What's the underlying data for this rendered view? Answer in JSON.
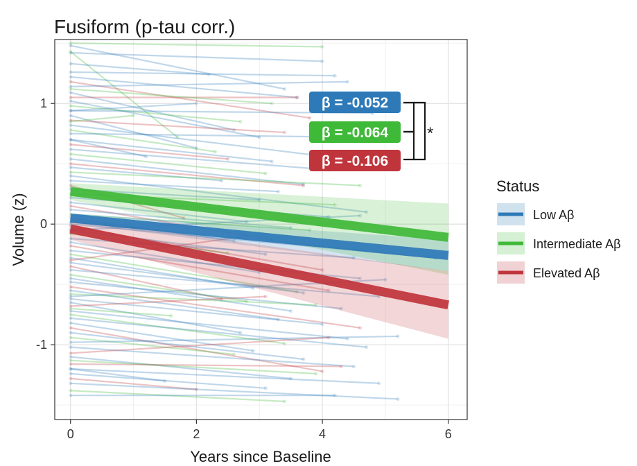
{
  "chart_data": {
    "type": "line",
    "title": "Fusiform (p-tau corr.)",
    "xlabel": "Years since Baseline",
    "ylabel": "Volume (z)",
    "xlim": [
      -0.25,
      6.3
    ],
    "ylim": [
      -1.62,
      1.53
    ],
    "xticks": [
      0,
      2,
      4,
      6
    ],
    "yticks": [
      -1,
      0,
      1
    ],
    "grid": true,
    "legend": {
      "title": "Status",
      "position": "right",
      "entries": [
        "Low Aβ",
        "Intermediate Aβ",
        "Elevated Aβ"
      ]
    },
    "colors": {
      "low": "#2e7ab8",
      "intermediate": "#3fb938",
      "elevated": "#c0343c"
    },
    "series": [
      {
        "name": "Low Aβ",
        "key": "low",
        "fit": {
          "x": [
            0,
            6
          ],
          "y": [
            0.05,
            -0.26
          ]
        },
        "ci_start": [
          0.01,
          0.09
        ],
        "ci_end": [
          -0.39,
          -0.13
        ],
        "beta": "β = -0.052"
      },
      {
        "name": "Intermediate Aβ",
        "key": "intermediate",
        "fit": {
          "x": [
            0,
            6
          ],
          "y": [
            0.27,
            -0.11
          ]
        },
        "ci_start": [
          0.2,
          0.34
        ],
        "ci_end": [
          -0.42,
          0.17
        ],
        "beta": "β = -0.064"
      },
      {
        "name": "Elevated Aβ",
        "key": "elevated",
        "fit": {
          "x": [
            0,
            6
          ],
          "y": [
            -0.04,
            -0.67
          ]
        },
        "ci_start": [
          -0.13,
          0.05
        ],
        "ci_end": [
          -0.95,
          -0.39
        ],
        "beta": "β = -0.106"
      }
    ],
    "annotations": {
      "significance": "*"
    },
    "trajectories": [
      {
        "g": "low",
        "x0": 0,
        "y0": 1.48,
        "x1": 3.4,
        "y1": 1.12
      },
      {
        "g": "intermediate",
        "x0": 0,
        "y0": 1.5,
        "x1": 4.0,
        "y1": 1.47
      },
      {
        "g": "low",
        "x0": 0,
        "y0": 1.42,
        "x1": 4.0,
        "y1": 1.35
      },
      {
        "g": "intermediate",
        "x0": 0,
        "y0": 1.43,
        "x1": 1.7,
        "y1": 0.72
      },
      {
        "g": "low",
        "x0": 0,
        "y0": 1.33,
        "x1": 2.2,
        "y1": 1.24
      },
      {
        "g": "low",
        "x0": 0,
        "y0": 1.26,
        "x1": 4.2,
        "y1": 1.23
      },
      {
        "g": "low",
        "x0": 0,
        "y0": 1.22,
        "x1": 3.6,
        "y1": 1.05
      },
      {
        "g": "elevated",
        "x0": 0,
        "y0": 1.18,
        "x1": 3.8,
        "y1": 0.88
      },
      {
        "g": "low",
        "x0": 0,
        "y0": 1.14,
        "x1": 4.4,
        "y1": 1.18
      },
      {
        "g": "low",
        "x0": 0,
        "y0": 1.09,
        "x1": 2.6,
        "y1": 0.78
      },
      {
        "g": "elevated",
        "x0": 0,
        "y0": 1.05,
        "x1": 3.6,
        "y1": 1.05
      },
      {
        "g": "low",
        "x0": 0,
        "y0": 1.02,
        "x1": 3.0,
        "y1": 0.72
      },
      {
        "g": "intermediate",
        "x0": 0,
        "y0": 0.98,
        "x1": 2.7,
        "y1": 0.85
      },
      {
        "g": "low",
        "x0": 0,
        "y0": 0.94,
        "x1": 4.8,
        "y1": 0.92
      },
      {
        "g": "low",
        "x0": 0,
        "y0": 0.9,
        "x1": 2.0,
        "y1": 0.63
      },
      {
        "g": "elevated",
        "x0": 0,
        "y0": 0.86,
        "x1": 3.4,
        "y1": 0.76
      },
      {
        "g": "low",
        "x0": 0,
        "y0": 0.82,
        "x1": 3.9,
        "y1": 0.57
      },
      {
        "g": "intermediate",
        "x0": 0,
        "y0": 0.78,
        "x1": 2.3,
        "y1": 0.6
      },
      {
        "g": "low",
        "x0": 0,
        "y0": 0.75,
        "x1": 4.5,
        "y1": 0.72
      },
      {
        "g": "low",
        "x0": 0,
        "y0": 0.7,
        "x1": 3.2,
        "y1": 0.52
      },
      {
        "g": "elevated",
        "x0": 0,
        "y0": 0.66,
        "x1": 2.5,
        "y1": 0.54
      },
      {
        "g": "low",
        "x0": 0,
        "y0": 0.62,
        "x1": 4.1,
        "y1": 0.45
      },
      {
        "g": "intermediate",
        "x0": 0,
        "y0": 0.58,
        "x1": 3.1,
        "y1": 0.42
      },
      {
        "g": "low",
        "x0": 0,
        "y0": 0.54,
        "x1": 3.7,
        "y1": 0.33
      },
      {
        "g": "elevated",
        "x0": 0,
        "y0": 0.5,
        "x1": 3.7,
        "y1": 0.32
      },
      {
        "g": "low",
        "x0": 0,
        "y0": 0.47,
        "x1": 2.4,
        "y1": 0.36
      },
      {
        "g": "intermediate",
        "x0": 0,
        "y0": 0.43,
        "x1": 4.6,
        "y1": 0.32
      },
      {
        "g": "low",
        "x0": 0,
        "y0": 0.4,
        "x1": 4.7,
        "y1": 0.1
      },
      {
        "g": "low",
        "x0": 0,
        "y0": 0.36,
        "x1": 3.3,
        "y1": 0.27
      },
      {
        "g": "elevated",
        "x0": 0,
        "y0": 0.32,
        "x1": 1.8,
        "y1": 0.05
      },
      {
        "g": "low",
        "x0": 0,
        "y0": 0.29,
        "x1": 3.0,
        "y1": 0.2
      },
      {
        "g": "intermediate",
        "x0": 0,
        "y0": 0.25,
        "x1": 4.2,
        "y1": 0.16
      },
      {
        "g": "low",
        "x0": 0,
        "y0": 0.22,
        "x1": 4.1,
        "y1": 0.06
      },
      {
        "g": "low",
        "x0": 0,
        "y0": 0.18,
        "x1": 2.8,
        "y1": 0.02
      },
      {
        "g": "elevated",
        "x0": 0,
        "y0": 0.15,
        "x1": 3.2,
        "y1": -0.13
      },
      {
        "g": "low",
        "x0": 0,
        "y0": 0.12,
        "x1": 3.5,
        "y1": -0.03
      },
      {
        "g": "intermediate",
        "x0": 0,
        "y0": 0.08,
        "x1": 3.8,
        "y1": -0.05
      },
      {
        "g": "low",
        "x0": 0,
        "y0": 0.05,
        "x1": 2.6,
        "y1": -0.14
      },
      {
        "g": "low",
        "x0": 0,
        "y0": 0.02,
        "x1": 4.7,
        "y1": -0.22
      },
      {
        "g": "elevated",
        "x0": 0,
        "y0": -0.02,
        "x1": 4.0,
        "y1": -0.38
      },
      {
        "g": "low",
        "x0": 0,
        "y0": -0.05,
        "x1": 3.1,
        "y1": -0.25
      },
      {
        "g": "intermediate",
        "x0": 0,
        "y0": -0.08,
        "x1": 2.5,
        "y1": -0.24
      },
      {
        "g": "low",
        "x0": 0,
        "y0": -0.12,
        "x1": 4.5,
        "y1": -0.28
      },
      {
        "g": "low",
        "x0": 0,
        "y0": -0.15,
        "x1": 3.0,
        "y1": -0.4
      },
      {
        "g": "elevated",
        "x0": 0,
        "y0": -0.18,
        "x1": 4.1,
        "y1": -0.55
      },
      {
        "g": "low",
        "x0": 0,
        "y0": -0.22,
        "x1": 4.6,
        "y1": -0.45
      },
      {
        "g": "intermediate",
        "x0": 0,
        "y0": -0.25,
        "x1": 3.6,
        "y1": -0.56
      },
      {
        "g": "low",
        "x0": 0,
        "y0": -0.28,
        "x1": 2.9,
        "y1": -0.53
      },
      {
        "g": "low",
        "x0": 0,
        "y0": -0.32,
        "x1": 3.7,
        "y1": -0.57
      },
      {
        "g": "elevated",
        "x0": 0,
        "y0": -0.35,
        "x1": 2.4,
        "y1": -0.62
      },
      {
        "g": "low",
        "x0": 0,
        "y0": -0.38,
        "x1": 4.9,
        "y1": -0.6
      },
      {
        "g": "intermediate",
        "x0": 0,
        "y0": -0.42,
        "x1": 2.8,
        "y1": -0.64
      },
      {
        "g": "low",
        "x0": 0,
        "y0": -0.45,
        "x1": 3.5,
        "y1": -0.72
      },
      {
        "g": "low",
        "x0": 0,
        "y0": -0.48,
        "x1": 4.3,
        "y1": -0.7
      },
      {
        "g": "elevated",
        "x0": 0,
        "y0": -0.52,
        "x1": 4.6,
        "y1": -0.86
      },
      {
        "g": "low",
        "x0": 0,
        "y0": -0.55,
        "x1": 3.3,
        "y1": -0.79
      },
      {
        "g": "intermediate",
        "x0": 0,
        "y0": -0.58,
        "x1": 3.9,
        "y1": -0.67
      },
      {
        "g": "low",
        "x0": 0,
        "y0": -0.62,
        "x1": 4.0,
        "y1": -0.83
      },
      {
        "g": "low",
        "x0": 0,
        "y0": -0.65,
        "x1": 2.7,
        "y1": -0.9
      },
      {
        "g": "elevated",
        "x0": 0,
        "y0": -0.68,
        "x1": 3.1,
        "y1": -0.6
      },
      {
        "g": "low",
        "x0": 0,
        "y0": -0.72,
        "x1": 4.4,
        "y1": -0.95
      },
      {
        "g": "intermediate",
        "x0": 0,
        "y0": -0.75,
        "x1": 3.4,
        "y1": -0.99
      },
      {
        "g": "low",
        "x0": 0,
        "y0": -0.78,
        "x1": 4.7,
        "y1": -1.02
      },
      {
        "g": "low",
        "x0": 0,
        "y0": -0.82,
        "x1": 2.9,
        "y1": -1.05
      },
      {
        "g": "elevated",
        "x0": 0,
        "y0": -0.86,
        "x1": 4.0,
        "y1": -1.22
      },
      {
        "g": "low",
        "x0": 0,
        "y0": -0.9,
        "x1": 3.7,
        "y1": -1.12
      },
      {
        "g": "intermediate",
        "x0": 0,
        "y0": -0.94,
        "x1": 2.6,
        "y1": -1.08
      },
      {
        "g": "low",
        "x0": 0,
        "y0": -0.98,
        "x1": 5.2,
        "y1": -0.93
      },
      {
        "g": "low",
        "x0": 0,
        "y0": -1.02,
        "x1": 4.5,
        "y1": -1.18
      },
      {
        "g": "elevated",
        "x0": 0,
        "y0": -1.07,
        "x1": 4.1,
        "y1": -0.94
      },
      {
        "g": "low",
        "x0": 0,
        "y0": -1.1,
        "x1": 3.5,
        "y1": -1.28
      },
      {
        "g": "intermediate",
        "x0": 0,
        "y0": -1.13,
        "x1": 3.9,
        "y1": -1.24
      },
      {
        "g": "elevated",
        "x0": 0,
        "y0": -1.16,
        "x1": 4.3,
        "y1": -1.18
      },
      {
        "g": "low",
        "x0": 0,
        "y0": -1.2,
        "x1": 4.9,
        "y1": -1.32
      },
      {
        "g": "low",
        "x0": 0,
        "y0": -1.24,
        "x1": 3.1,
        "y1": -1.36
      },
      {
        "g": "elevated",
        "x0": 0,
        "y0": -1.28,
        "x1": 2.0,
        "y1": -1.37
      },
      {
        "g": "low",
        "x0": 0,
        "y0": -1.32,
        "x1": 5.2,
        "y1": -1.45
      },
      {
        "g": "intermediate",
        "x0": 0,
        "y0": -1.38,
        "x1": 3.4,
        "y1": -1.47
      },
      {
        "g": "low",
        "x0": 0,
        "y0": -1.42,
        "x1": 4.2,
        "y1": -1.42
      },
      {
        "g": "low",
        "x0": 0,
        "y0": 0.94,
        "x1": 2.0,
        "y1": 1.0
      },
      {
        "g": "intermediate",
        "x0": 0,
        "y0": 0.85,
        "x1": 1.0,
        "y1": 0.9
      },
      {
        "g": "low",
        "x0": 0,
        "y0": -0.6,
        "x1": 5.0,
        "y1": -0.46
      },
      {
        "g": "elevated",
        "x0": 0,
        "y0": -0.3,
        "x1": 2.8,
        "y1": -0.1
      },
      {
        "g": "low",
        "x0": 0,
        "y0": 0.0,
        "x1": 5.8,
        "y1": -0.28
      },
      {
        "g": "intermediate",
        "x0": 0,
        "y0": -0.7,
        "x1": 1.6,
        "y1": -0.76
      },
      {
        "g": "low",
        "x0": 0,
        "y0": 0.7,
        "x1": 1.2,
        "y1": 0.56
      },
      {
        "g": "low",
        "x0": 0,
        "y0": -1.2,
        "x1": 1.5,
        "y1": -1.3
      },
      {
        "g": "intermediate",
        "x0": 0,
        "y0": 1.12,
        "x1": 3.2,
        "y1": 1.0
      },
      {
        "g": "low",
        "x0": 0,
        "y0": -0.05,
        "x1": 4.6,
        "y1": 0.07
      }
    ]
  }
}
